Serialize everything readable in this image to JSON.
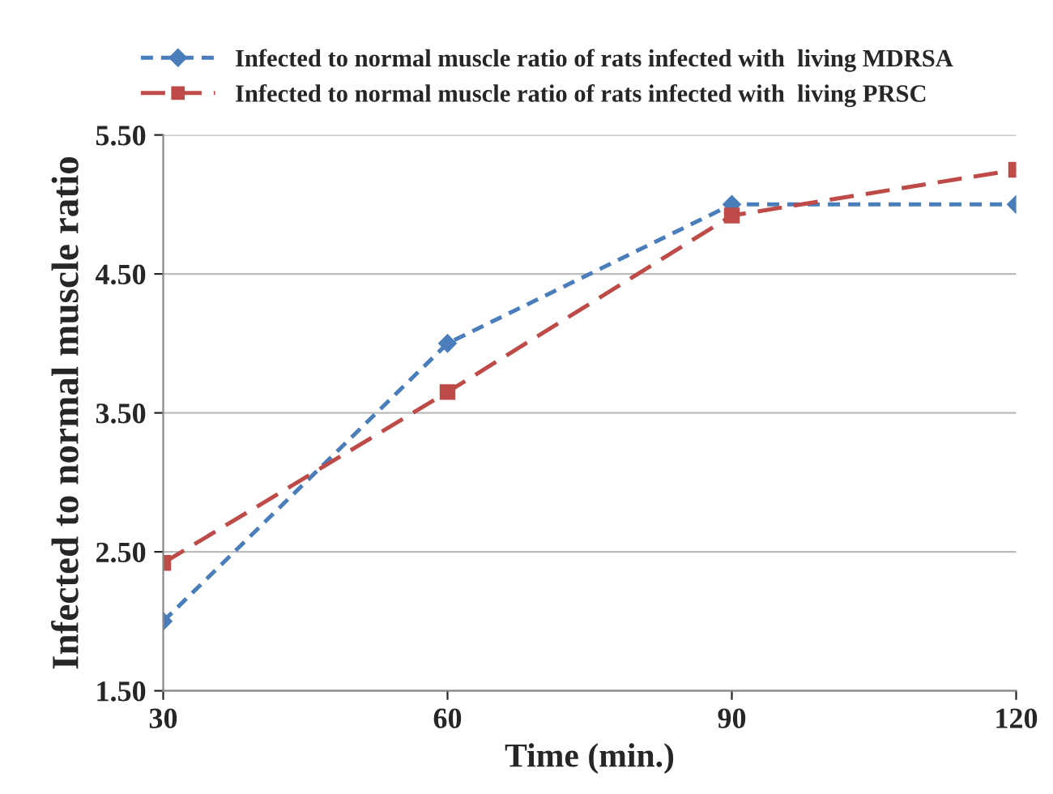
{
  "chart_data": {
    "type": "line",
    "xlabel": "Time (min.)",
    "ylabel": "Infected to normal muscle ratio",
    "x": [
      30,
      60,
      90,
      120
    ],
    "series": [
      {
        "name": "Infected to normal muscle ratio of rats infected with  living MDRSA",
        "color": "#4a7ebb",
        "values": [
          2.0,
          4.0,
          5.0,
          5.0
        ],
        "marker": "diamond",
        "line_style": "dotted"
      },
      {
        "name": "Infected to normal muscle ratio of rats infected with  living PRSC",
        "color": "#be4b48",
        "values": [
          2.42,
          3.65,
          4.92,
          5.25
        ],
        "marker": "square",
        "line_style": "dashed"
      }
    ],
    "xlim": [
      30,
      120
    ],
    "xticks": [
      30,
      60,
      90,
      120
    ],
    "ylim": [
      1.5,
      5.5
    ],
    "yticks": [
      {
        "value": 1.5,
        "label": "1.50"
      },
      {
        "value": 2.5,
        "label": "2.50"
      },
      {
        "value": 3.5,
        "label": "3.50"
      },
      {
        "value": 4.5,
        "label": "4.50"
      },
      {
        "value": 5.5,
        "label": "5.50"
      }
    ],
    "grid": "y",
    "legend": "top"
  }
}
